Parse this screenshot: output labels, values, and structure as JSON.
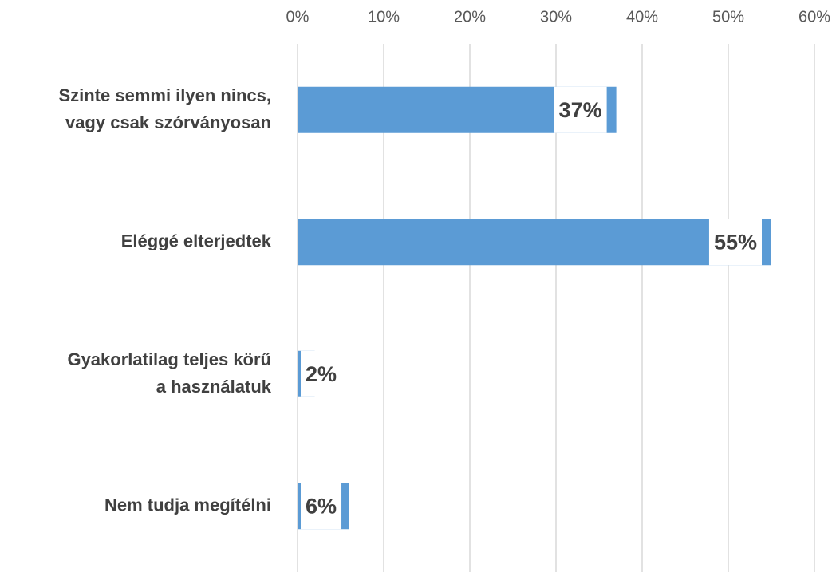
{
  "chart_data": {
    "type": "hbar",
    "categories": [
      [
        "Szinte semmi ilyen nincs,",
        "vagy csak szórványosan"
      ],
      [
        "Eléggé elterjedtek"
      ],
      [
        "Gyakorlatilag teljes körű",
        "a használatuk"
      ],
      [
        "Nem tudja megítélni"
      ]
    ],
    "values": [
      37,
      55,
      2,
      6
    ],
    "value_labels": [
      "37%",
      "55%",
      "2%",
      "6%"
    ],
    "color": "#5b9bd5",
    "xlim": [
      0,
      60
    ],
    "xticks": [
      {
        "value": 0,
        "label": "0%"
      },
      {
        "value": 10,
        "label": "10%"
      },
      {
        "value": 20,
        "label": "20%"
      },
      {
        "value": 30,
        "label": "30%"
      },
      {
        "value": 40,
        "label": "40%"
      },
      {
        "value": 50,
        "label": "50%"
      },
      {
        "value": 60,
        "label": "60%"
      }
    ],
    "grid": true
  }
}
